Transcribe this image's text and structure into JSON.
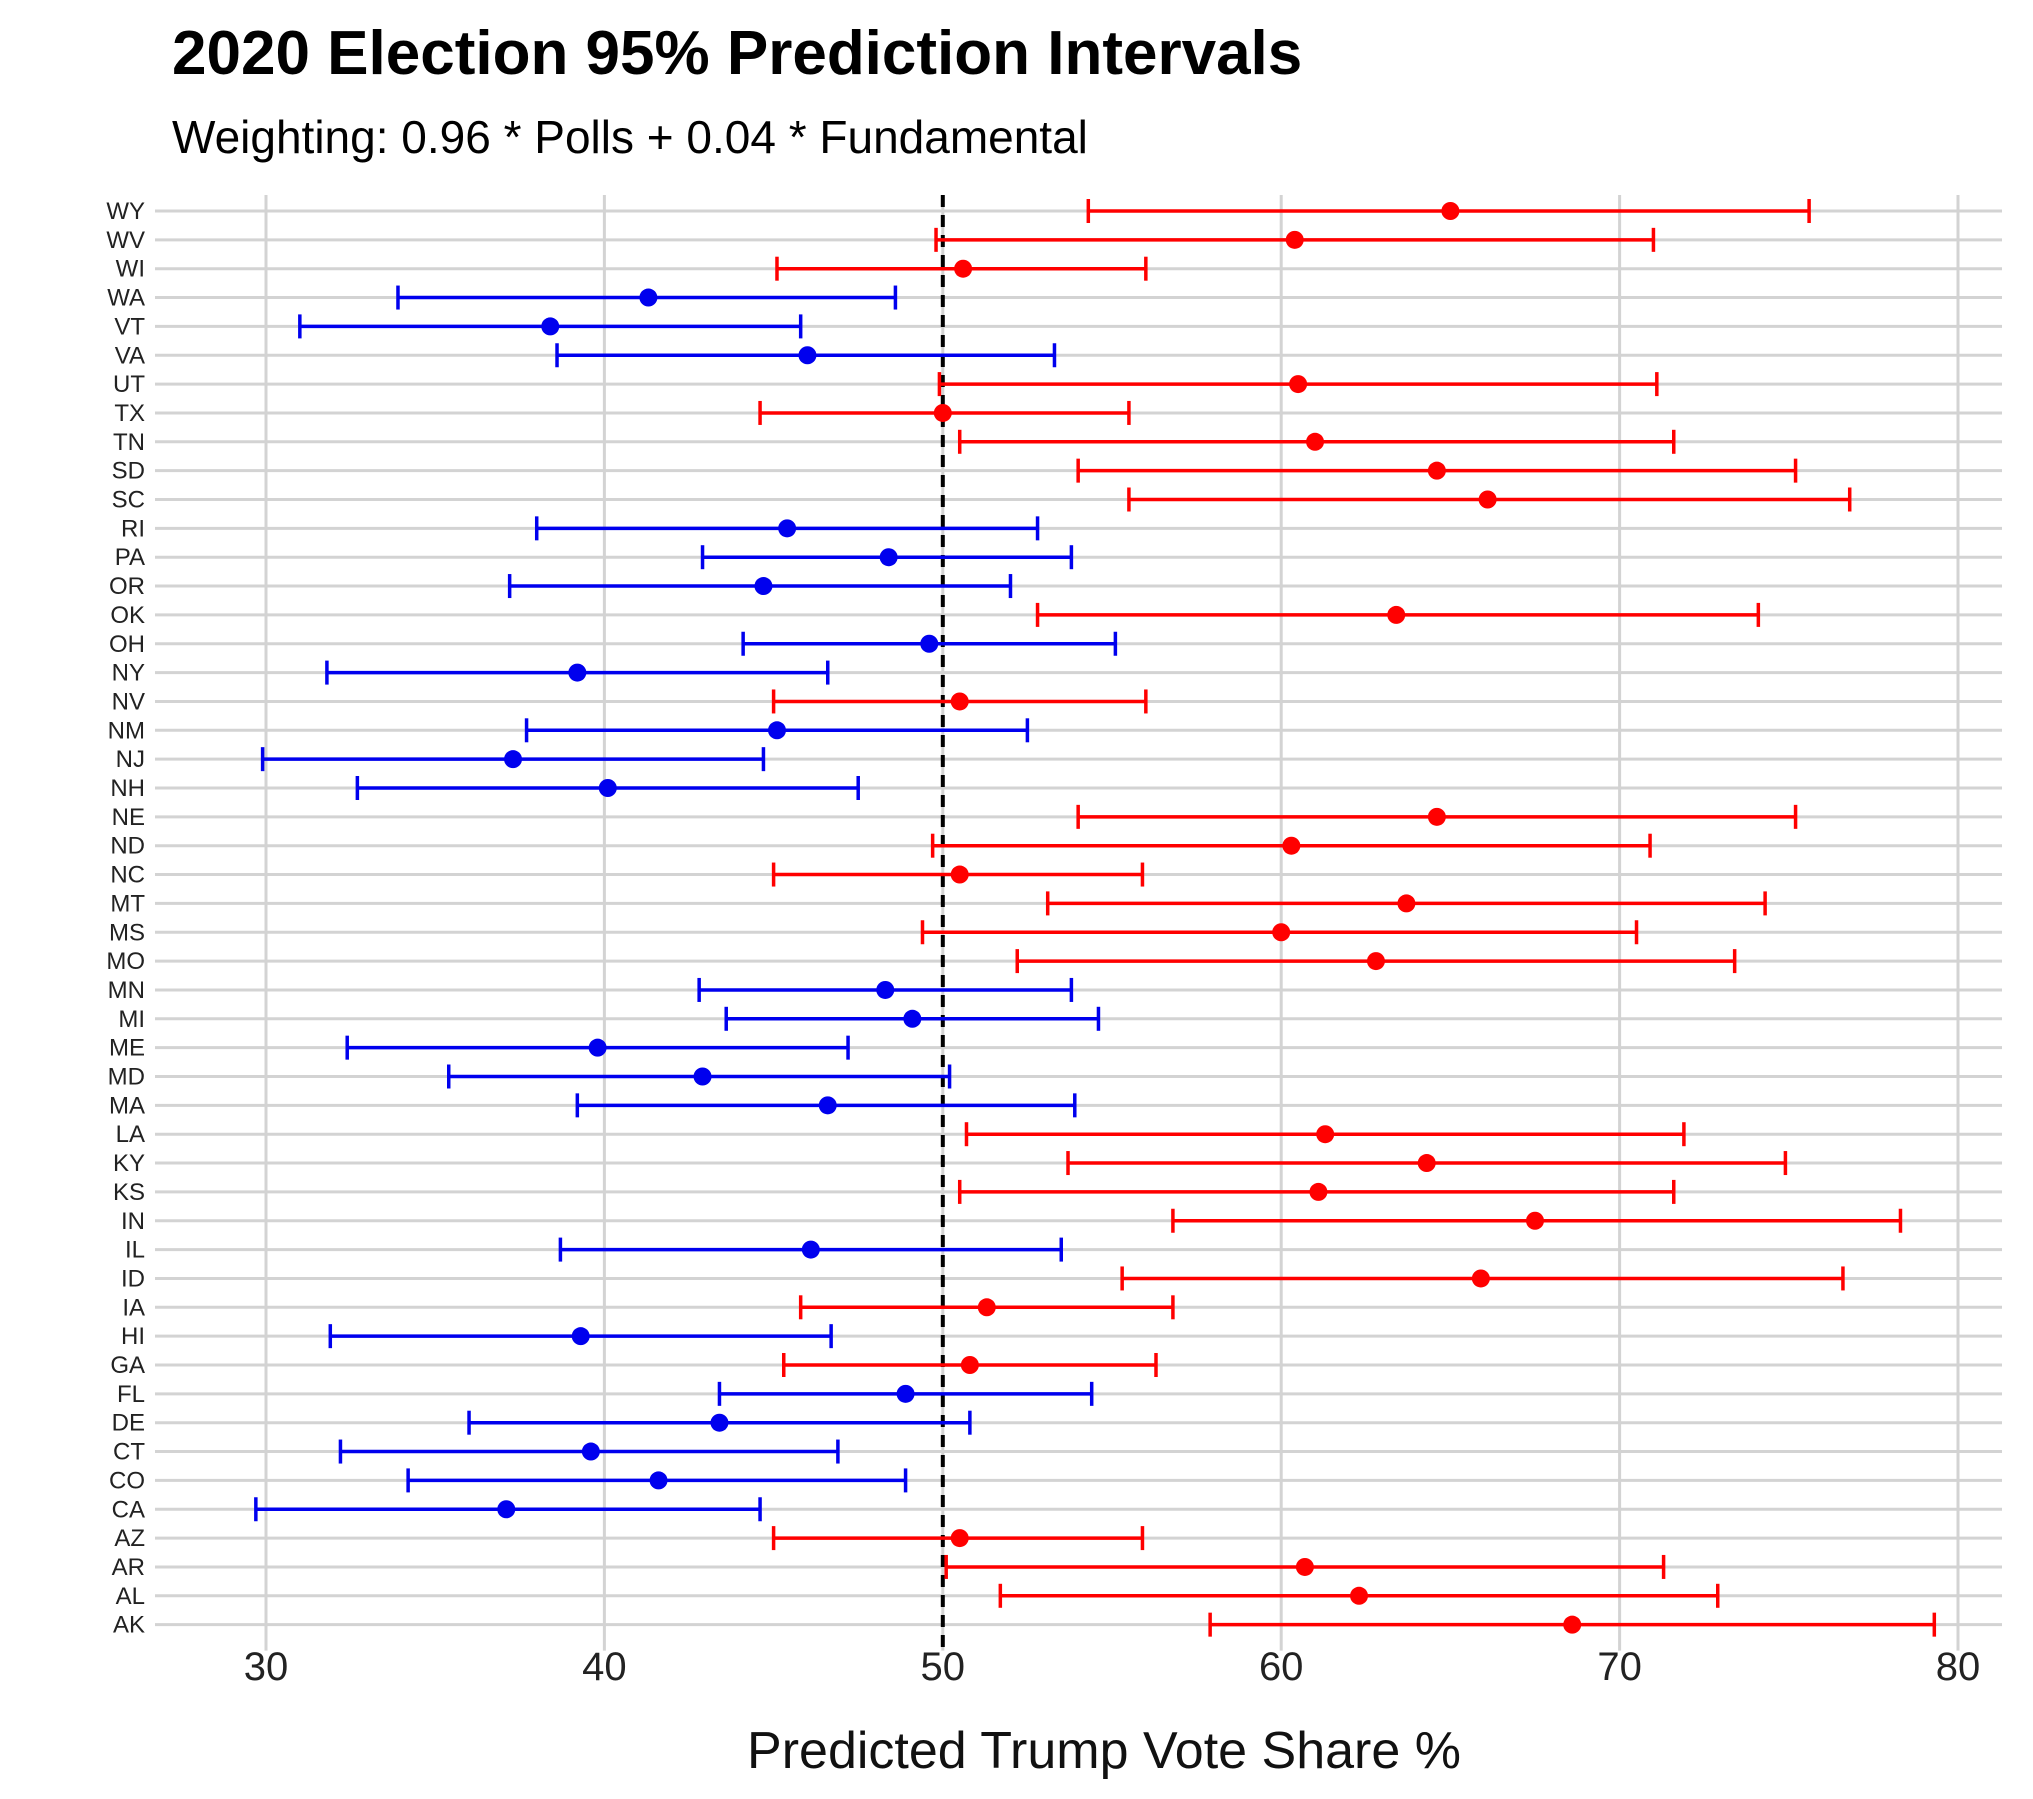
{
  "chart_data": {
    "type": "errorbar",
    "title": "2020 Election 95% Prediction Intervals",
    "subtitle": "Weighting: 0.96 * Polls + 0.04 * Fundamental",
    "xlabel": "Predicted Trump Vote Share %",
    "ylabel": "",
    "xlim": [
      27,
      81
    ],
    "xticks": [
      30,
      40,
      50,
      60,
      70,
      80
    ],
    "reference_line": 50,
    "grid": true,
    "colors": {
      "red": "#ff0000",
      "blue": "#0000ee",
      "grid": "#d3d3d3",
      "reference": "#000000"
    },
    "states": [
      {
        "state": "WY",
        "lo": 54.3,
        "est": 65.0,
        "hi": 75.6,
        "color": "red"
      },
      {
        "state": "WV",
        "lo": 49.8,
        "est": 60.4,
        "hi": 71.0,
        "color": "red"
      },
      {
        "state": "WI",
        "lo": 45.1,
        "est": 50.6,
        "hi": 56.0,
        "color": "red"
      },
      {
        "state": "WA",
        "lo": 33.9,
        "est": 41.3,
        "hi": 48.6,
        "color": "blue"
      },
      {
        "state": "VT",
        "lo": 31.0,
        "est": 38.4,
        "hi": 45.8,
        "color": "blue"
      },
      {
        "state": "VA",
        "lo": 38.6,
        "est": 46.0,
        "hi": 53.3,
        "color": "blue"
      },
      {
        "state": "UT",
        "lo": 49.9,
        "est": 60.5,
        "hi": 71.1,
        "color": "red"
      },
      {
        "state": "TX",
        "lo": 44.6,
        "est": 50.0,
        "hi": 55.5,
        "color": "red"
      },
      {
        "state": "TN",
        "lo": 50.5,
        "est": 61.0,
        "hi": 71.6,
        "color": "red"
      },
      {
        "state": "SD",
        "lo": 54.0,
        "est": 64.6,
        "hi": 75.2,
        "color": "red"
      },
      {
        "state": "SC",
        "lo": 55.5,
        "est": 66.1,
        "hi": 76.8,
        "color": "red"
      },
      {
        "state": "RI",
        "lo": 38.0,
        "est": 45.4,
        "hi": 52.8,
        "color": "blue"
      },
      {
        "state": "PA",
        "lo": 42.9,
        "est": 48.4,
        "hi": 53.8,
        "color": "blue"
      },
      {
        "state": "OR",
        "lo": 37.2,
        "est": 44.7,
        "hi": 52.0,
        "color": "blue"
      },
      {
        "state": "OK",
        "lo": 52.8,
        "est": 63.4,
        "hi": 74.1,
        "color": "red"
      },
      {
        "state": "OH",
        "lo": 44.1,
        "est": 49.6,
        "hi": 55.1,
        "color": "blue"
      },
      {
        "state": "NY",
        "lo": 31.8,
        "est": 39.2,
        "hi": 46.6,
        "color": "blue"
      },
      {
        "state": "NV",
        "lo": 45.0,
        "est": 50.5,
        "hi": 56.0,
        "color": "red"
      },
      {
        "state": "NM",
        "lo": 37.7,
        "est": 45.1,
        "hi": 52.5,
        "color": "blue"
      },
      {
        "state": "NJ",
        "lo": 29.9,
        "est": 37.3,
        "hi": 44.7,
        "color": "blue"
      },
      {
        "state": "NH",
        "lo": 32.7,
        "est": 40.1,
        "hi": 47.5,
        "color": "blue"
      },
      {
        "state": "NE",
        "lo": 54.0,
        "est": 64.6,
        "hi": 75.2,
        "color": "red"
      },
      {
        "state": "ND",
        "lo": 49.7,
        "est": 60.3,
        "hi": 70.9,
        "color": "red"
      },
      {
        "state": "NC",
        "lo": 45.0,
        "est": 50.5,
        "hi": 55.9,
        "color": "red"
      },
      {
        "state": "MT",
        "lo": 53.1,
        "est": 63.7,
        "hi": 74.3,
        "color": "red"
      },
      {
        "state": "MS",
        "lo": 49.4,
        "est": 60.0,
        "hi": 70.5,
        "color": "red"
      },
      {
        "state": "MO",
        "lo": 52.2,
        "est": 62.8,
        "hi": 73.4,
        "color": "red"
      },
      {
        "state": "MN",
        "lo": 42.8,
        "est": 48.3,
        "hi": 53.8,
        "color": "blue"
      },
      {
        "state": "MI",
        "lo": 43.6,
        "est": 49.1,
        "hi": 54.6,
        "color": "blue"
      },
      {
        "state": "ME",
        "lo": 32.4,
        "est": 39.8,
        "hi": 47.2,
        "color": "blue"
      },
      {
        "state": "MD",
        "lo": 35.4,
        "est": 42.9,
        "hi": 50.2,
        "color": "blue"
      },
      {
        "state": "MA",
        "lo": 39.2,
        "est": 46.6,
        "hi": 53.9,
        "color": "blue"
      },
      {
        "state": "LA",
        "lo": 50.7,
        "est": 61.3,
        "hi": 71.9,
        "color": "red"
      },
      {
        "state": "KY",
        "lo": 53.7,
        "est": 64.3,
        "hi": 74.9,
        "color": "red"
      },
      {
        "state": "KS",
        "lo": 50.5,
        "est": 61.1,
        "hi": 71.6,
        "color": "red"
      },
      {
        "state": "IN",
        "lo": 56.8,
        "est": 67.5,
        "hi": 78.3,
        "color": "red"
      },
      {
        "state": "IL",
        "lo": 38.7,
        "est": 46.1,
        "hi": 53.5,
        "color": "blue"
      },
      {
        "state": "ID",
        "lo": 55.3,
        "est": 65.9,
        "hi": 76.6,
        "color": "red"
      },
      {
        "state": "IA",
        "lo": 45.8,
        "est": 51.3,
        "hi": 56.8,
        "color": "red"
      },
      {
        "state": "HI",
        "lo": 31.9,
        "est": 39.3,
        "hi": 46.7,
        "color": "blue"
      },
      {
        "state": "GA",
        "lo": 45.3,
        "est": 50.8,
        "hi": 56.3,
        "color": "red"
      },
      {
        "state": "FL",
        "lo": 43.4,
        "est": 48.9,
        "hi": 54.4,
        "color": "blue"
      },
      {
        "state": "DE",
        "lo": 36.0,
        "est": 43.4,
        "hi": 50.8,
        "color": "blue"
      },
      {
        "state": "CT",
        "lo": 32.2,
        "est": 39.6,
        "hi": 46.9,
        "color": "blue"
      },
      {
        "state": "CO",
        "lo": 34.2,
        "est": 41.6,
        "hi": 48.9,
        "color": "blue"
      },
      {
        "state": "CA",
        "lo": 29.7,
        "est": 37.1,
        "hi": 44.6,
        "color": "blue"
      },
      {
        "state": "AZ",
        "lo": 45.0,
        "est": 50.5,
        "hi": 55.9,
        "color": "red"
      },
      {
        "state": "AR",
        "lo": 50.1,
        "est": 60.7,
        "hi": 71.3,
        "color": "red"
      },
      {
        "state": "AL",
        "lo": 51.7,
        "est": 62.3,
        "hi": 72.9,
        "color": "red"
      },
      {
        "state": "AK",
        "lo": 57.9,
        "est": 68.6,
        "hi": 79.3,
        "color": "red"
      }
    ]
  }
}
